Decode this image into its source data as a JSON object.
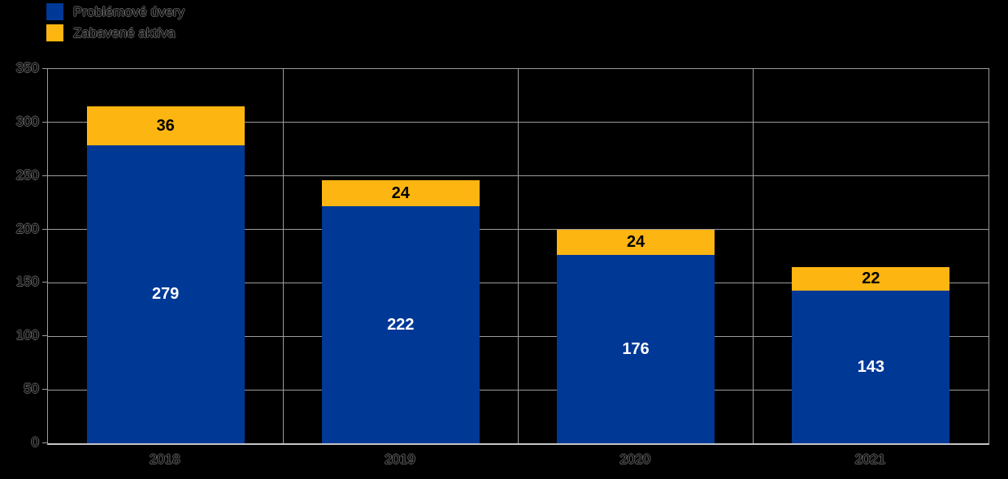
{
  "legend": {
    "items": [
      {
        "label": "Problémové úvery",
        "color": "#003896",
        "swatch_icon": "blue-square-icon"
      },
      {
        "label": "Zabavené aktíva",
        "color": "#FDB511",
        "swatch_icon": "orange-square-icon"
      }
    ]
  },
  "chart_data": {
    "type": "bar",
    "stacked": true,
    "title": "",
    "xlabel": "",
    "ylabel": "",
    "categories": [
      "2018",
      "2019",
      "2020",
      "2021"
    ],
    "series": [
      {
        "name": "Problémové úvery",
        "color": "#003896",
        "label_color": "#ffffff",
        "values": [
          279,
          222,
          176,
          143
        ]
      },
      {
        "name": "Zabavené aktíva",
        "color": "#FDB511",
        "label_color": "#000000",
        "values": [
          36,
          24,
          24,
          22
        ]
      }
    ],
    "ylim": [
      0,
      350
    ],
    "yticks": [
      0,
      50,
      100,
      150,
      200,
      250,
      300,
      350
    ],
    "grid": true,
    "category_separators": true,
    "legend_position": "top-left"
  },
  "colors": {
    "background": "#000000",
    "grid": "#9c9c9c",
    "axis_bottom": "#c4c4c4",
    "ghost_text_outline": "#636363"
  }
}
